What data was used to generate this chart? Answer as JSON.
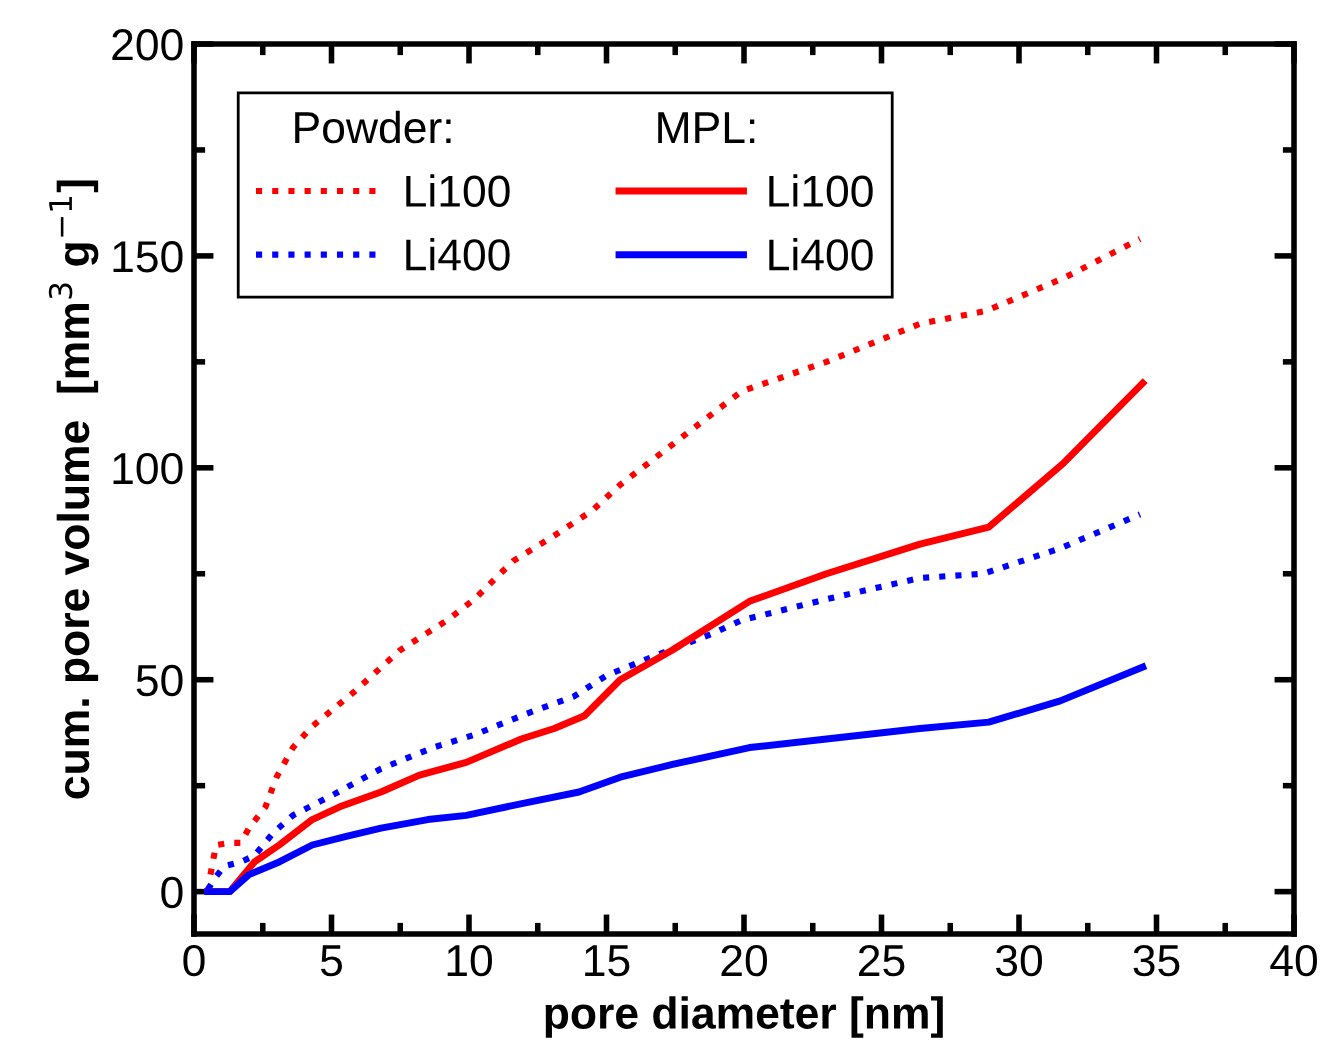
{
  "chart_data": {
    "type": "line",
    "xlabel": "pore diameter [nm]",
    "ylabel": "cum. pore volume  [mm$^{3}$ g$^{−1}$]",
    "legend_title": [
      "Powder:",
      "MPL:"
    ],
    "legend": "top left",
    "xlim": [
      0,
      40
    ],
    "ylim": [
      -10,
      200
    ],
    "xticks": [
      0,
      {
        "value": 2.5,
        "label": null
      },
      5,
      {
        "value": 7.5,
        "label": null
      },
      10,
      {
        "value": 12.5,
        "label": null
      },
      15,
      {
        "value": 17.5,
        "label": null
      },
      20,
      {
        "value": 22.5,
        "label": null
      },
      25,
      {
        "value": 27.5,
        "label": null
      },
      30,
      {
        "value": 32.5,
        "label": null
      },
      35,
      {
        "value": 37.5,
        "label": null
      },
      40
    ],
    "yticks": [
      0,
      {
        "value": 25,
        "label": null
      },
      50,
      {
        "value": 75,
        "label": null
      },
      100,
      {
        "value": 125,
        "label": null
      },
      150,
      {
        "value": 175,
        "label": null
      },
      200
    ],
    "grid": false,
    "series": [
      {
        "name": "Li100",
        "color": "#ff0000",
        "line_style": "dotted",
        "x": [
          0.6,
          0.8,
          1.3,
          1.7,
          2.0,
          2.6,
          3.0,
          3.6,
          4.3,
          5.8,
          7.5,
          9.2,
          10.2,
          11.6,
          13.1,
          14.5,
          15.5,
          17.5,
          19.9,
          23.0,
          26.4,
          28.8,
          31.7,
          34.4
        ],
        "values": [
          4,
          11,
          11.5,
          11.5,
          15,
          20,
          27,
          34,
          39,
          47,
          57,
          64,
          69,
          78,
          84,
          90,
          96,
          106,
          118,
          125,
          134,
          137,
          145,
          154
        ]
      },
      {
        "name": "Li400",
        "color": "#0000ff",
        "line_style": "dotted",
        "x": [
          0.5,
          0.8,
          1.1,
          1.7,
          2.2,
          2.9,
          3.6,
          5.1,
          6.8,
          8.7,
          10.2,
          12.1,
          13.8,
          15.0,
          16.9,
          18.9,
          19.9,
          23.0,
          26.4,
          28.7,
          31.5,
          34.4
        ],
        "values": [
          0.5,
          3.5,
          6,
          7,
          8.5,
          14,
          18,
          23,
          29,
          34,
          37,
          42,
          46,
          51,
          56,
          61,
          64,
          69,
          74,
          75,
          81,
          89
        ]
      },
      {
        "name": "Li100",
        "color": "#ff0000",
        "line_style": "solid",
        "x": [
          0.5,
          1.3,
          2.2,
          3.1,
          4.3,
          5.3,
          6.8,
          8.2,
          9.9,
          11.9,
          13.1,
          14.2,
          15.5,
          17.4,
          20.2,
          23.0,
          26.4,
          28.9,
          31.6,
          34.5
        ],
        "values": [
          0,
          0,
          7,
          11,
          17,
          20,
          23.5,
          27.5,
          30.5,
          36,
          38.5,
          41.5,
          50,
          57,
          68.5,
          75,
          82,
          86,
          101,
          120
        ]
      },
      {
        "name": "Li400",
        "color": "#0000ff",
        "line_style": "solid",
        "x": [
          0.5,
          1.3,
          2.0,
          3.1,
          4.3,
          5.5,
          6.8,
          8.5,
          9.9,
          12.1,
          14.0,
          15.5,
          17.4,
          20.2,
          23.0,
          26.4,
          28.9,
          31.5,
          34.5
        ],
        "values": [
          0,
          0,
          4,
          7,
          11,
          13,
          15,
          17,
          18,
          21,
          23.5,
          27,
          30,
          34,
          36,
          38.5,
          40,
          45,
          53
        ]
      }
    ]
  }
}
